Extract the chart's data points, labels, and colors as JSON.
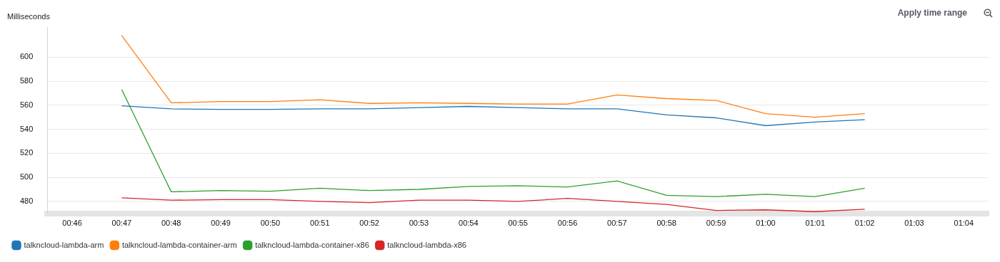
{
  "chart_data": {
    "type": "line",
    "ylabel": "Milliseconds",
    "annotations": [
      "Apply time range"
    ],
    "categories": [
      "00:46",
      "00:47",
      "00:48",
      "00:49",
      "00:50",
      "00:51",
      "00:52",
      "00:53",
      "00:54",
      "00:55",
      "00:56",
      "00:57",
      "00:58",
      "00:59",
      "01:00",
      "01:01",
      "01:02",
      "01:03",
      "01:04"
    ],
    "series": [
      {
        "name": "talkncloud-lambda-arm",
        "color": "#1f77b4",
        "values": [
          null,
          559.5,
          557,
          556.5,
          556.5,
          557,
          557,
          558,
          559,
          558,
          557,
          557,
          552,
          549.5,
          543,
          546,
          548,
          null,
          null
        ]
      },
      {
        "name": "talkncloud-lambda-container-arm",
        "color": "#ff7f0e",
        "values": [
          null,
          618,
          562,
          563,
          563,
          564.5,
          561.5,
          562,
          561.5,
          561,
          561,
          568.5,
          565.5,
          564,
          553,
          550,
          553,
          null,
          null
        ]
      },
      {
        "name": "talkncloud-lambda-container-x86",
        "color": "#2ca02c",
        "values": [
          null,
          573,
          488,
          489,
          488.5,
          491,
          489,
          490,
          492.5,
          493,
          492,
          497,
          485,
          484,
          486,
          484,
          491,
          null,
          null
        ]
      },
      {
        "name": "talkncloud-lambda-x86",
        "color": "#d62728",
        "values": [
          null,
          483,
          481,
          481.5,
          481.5,
          480,
          479,
          481,
          481,
          480,
          482.5,
          480,
          477.5,
          472.5,
          473,
          471.5,
          473.5,
          null,
          null
        ]
      }
    ],
    "ylim": [
      470,
      625
    ],
    "yticks": [
      480,
      500,
      520,
      540,
      560,
      580,
      600
    ],
    "grid": "y",
    "legend": "bottom left",
    "marker": "none",
    "line_style": "solid"
  }
}
